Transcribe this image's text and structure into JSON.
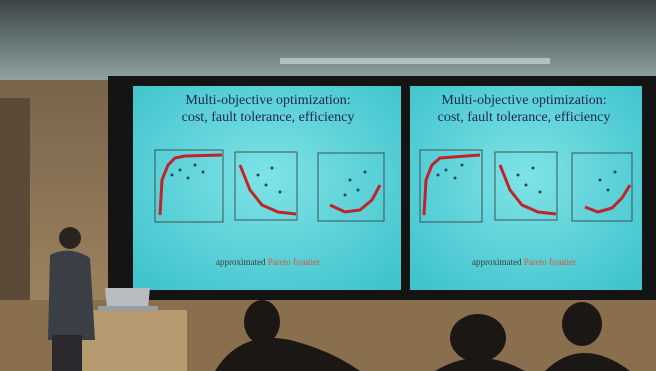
{
  "slides": [
    {
      "title": [
        "Multi-objective optimization:",
        "cost, fault tolerance, efficiency"
      ],
      "caption": {
        "plain": "approximated",
        "highlight": "Pareto frontier"
      }
    },
    {
      "title": [
        "Multi-objective optimization:",
        "cost, fault tolerance, efficiency"
      ],
      "caption": {
        "plain": "approximated",
        "highlight": "Pareto frontier"
      }
    }
  ]
}
